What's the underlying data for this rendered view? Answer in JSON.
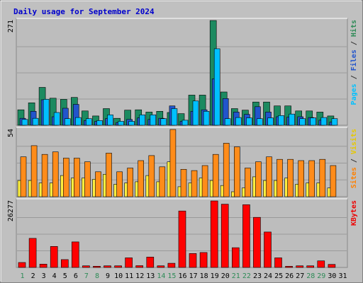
{
  "chart_data": {
    "type": "bar",
    "title": "Daily usage for September 2024",
    "days": [
      "1",
      "2",
      "3",
      "4",
      "5",
      "6",
      "7",
      "8",
      "9",
      "10",
      "11",
      "12",
      "13",
      "14",
      "15",
      "16",
      "17",
      "18",
      "19",
      "20",
      "21",
      "22",
      "23",
      "24",
      "25",
      "26",
      "27",
      "28",
      "29",
      "30",
      "31"
    ],
    "weekend_days": [
      "1",
      "7",
      "8",
      "14",
      "15",
      "21",
      "22",
      "28",
      "29"
    ],
    "panels": [
      {
        "id": "top",
        "ymax": 271,
        "ymax_label": "271",
        "side_labels": [
          {
            "text": "Pages",
            "color": "#00c0ff"
          },
          {
            "text": " / ",
            "color": "#333333"
          },
          {
            "text": "Files",
            "color": "#2255cc"
          },
          {
            "text": " / ",
            "color": "#333333"
          },
          {
            "text": "Hits",
            "color": "#2e8b57"
          }
        ],
        "series": [
          {
            "name": "Hits",
            "color": "#1c8a60",
            "values": [
              40,
              58,
              98,
              70,
              67,
              72,
              37,
              24,
              43,
              18,
              39,
              40,
              34,
              36,
              33,
              30,
              78,
              78,
              271,
              86,
              43,
              39,
              60,
              60,
              50,
              50,
              37,
              37,
              34,
              24,
              null
            ]
          },
          {
            "name": "Files",
            "color": "#2255cc",
            "values": [
              18,
              36,
              66,
              22,
              44,
              54,
              12,
              10,
              17,
              7,
              15,
              19,
              15,
              18,
              50,
              10,
              36,
              40,
              120,
              69,
              34,
              28,
              48,
              34,
              22,
              21,
              22,
              20,
              13,
              8,
              null
            ]
          },
          {
            "name": "Pages",
            "color": "#00c0ff",
            "values": [
              15,
              18,
              67,
              33,
              17,
              20,
              17,
              12,
              27,
              10,
              10,
              27,
              27,
              17,
              43,
              13,
              63,
              36,
              198,
              17,
              20,
              19,
              17,
              19,
              25,
              29,
              17,
              19,
              20,
              17,
              null
            ]
          }
        ]
      },
      {
        "id": "middle",
        "ymax": 54,
        "ymax_label": "54",
        "side_labels": [
          {
            "text": "Sites",
            "color": "#ff8000"
          },
          {
            "text": " / ",
            "color": "#333333"
          },
          {
            "text": "Visits",
            "color": "#e6c800"
          }
        ],
        "series": [
          {
            "name": "Visits",
            "color": "#ffef40",
            "values": [
              13,
              13,
              11,
              11,
              17,
              15,
              15,
              14,
              18,
              10,
              11,
              12,
              17,
              12,
              28,
              8,
              11,
              15,
              13,
              9,
              4,
              7,
              16,
              13,
              13,
              15,
              10,
              11,
              11,
              7,
              null
            ]
          },
          {
            "name": "Sites",
            "color": "#ff8c1a",
            "values": [
              32,
              41,
              34,
              36,
              31,
              31,
              28,
              20,
              35,
              20,
              23,
              29,
              33,
              24,
              54,
              22,
              21,
              25,
              34,
              43,
              40,
              23,
              28,
              32,
              30,
              30,
              29,
              29,
              30,
              25,
              null
            ]
          }
        ]
      },
      {
        "id": "bottom",
        "ymax": 26277,
        "ymax_label": "26277",
        "side_labels": [
          {
            "text": "KBytes",
            "color": "#ee0000"
          }
        ],
        "series": [
          {
            "name": "KBytes",
            "color": "#ff0000",
            "values": [
              1950,
              11500,
              1300,
              8300,
              3100,
              10100,
              650,
              470,
              650,
              650,
              3800,
              700,
              4100,
              650,
              1650,
              22300,
              5500,
              5900,
              26277,
              25000,
              7800,
              24800,
              19800,
              14000,
              3800,
              450,
              650,
              650,
              2600,
              1200,
              null
            ]
          }
        ]
      }
    ]
  }
}
